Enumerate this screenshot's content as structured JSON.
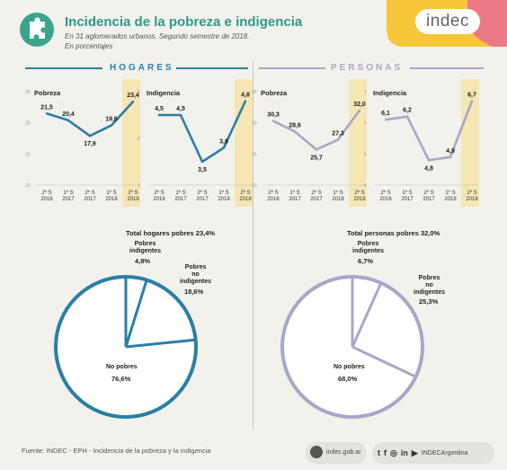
{
  "header": {
    "title": "Incidencia de la pobreza e indigencia",
    "subtitle_line1": "En 31 aglomerados urbanos. Segundo semestre de 2018.",
    "subtitle_line2": "En porcentajes",
    "brand": "indec",
    "colors": {
      "title": "#2d9a86",
      "brand_yellow": "#f6c73b",
      "brand_pink": "#ec7a86"
    }
  },
  "sections": {
    "hogares": {
      "title": "HOGARES",
      "color": "#2a7fa6"
    },
    "personas": {
      "title": "PERSONAS",
      "color": "#a9a7c8"
    }
  },
  "chart_data": [
    {
      "id": "hog_pob",
      "type": "line",
      "label": "Pobreza",
      "color": "#2a7fa6",
      "categories": [
        "2º S 2016",
        "1º S 2017",
        "2º S 2017",
        "1º S 2018",
        "2º S 2018"
      ],
      "values": [
        21.5,
        20.4,
        17.9,
        19.6,
        23.4
      ],
      "value_labels": [
        "21,5",
        "20,4",
        "17,9",
        "19,6",
        "23,4"
      ],
      "ylim": [
        10,
        25
      ],
      "yticks": [
        10,
        15,
        20,
        25
      ],
      "highlight_last": true
    },
    {
      "id": "hog_ind",
      "type": "line",
      "label": "Indigencia",
      "color": "#2a7fa6",
      "categories": [
        "2º S 2016",
        "1º S 2017",
        "2º S 2017",
        "1º S 2018",
        "2º S 2018"
      ],
      "values": [
        4.5,
        4.5,
        3.5,
        3.8,
        4.8
      ],
      "value_labels": [
        "4,5",
        "4,5",
        "3,5",
        "3,8",
        "4,8"
      ],
      "ylim": [
        3,
        5
      ],
      "yticks": [
        3,
        4,
        5
      ],
      "highlight_last": true
    },
    {
      "id": "per_pob",
      "type": "line",
      "label": "Pobreza",
      "color": "#a9a7c8",
      "categories": [
        "2º S 2016",
        "1º S 2017",
        "2º S 2017",
        "1º S 2018",
        "2º S 2018"
      ],
      "values": [
        30.3,
        28.6,
        25.7,
        27.3,
        32.0
      ],
      "value_labels": [
        "30,3",
        "28,6",
        "25,7",
        "27,3",
        "32,0"
      ],
      "ylim": [
        20,
        35
      ],
      "yticks": [
        20,
        25,
        30,
        35
      ],
      "highlight_last": true
    },
    {
      "id": "per_ind",
      "type": "line",
      "label": "Indigencia",
      "color": "#a9a7c8",
      "categories": [
        "2º S 2016",
        "1º S 2017",
        "2º S 2017",
        "1º S 2018",
        "2º S 2018"
      ],
      "values": [
        6.1,
        6.2,
        4.8,
        4.9,
        6.7
      ],
      "value_labels": [
        "6,1",
        "6,2",
        "4,8",
        "4,9",
        "6,7"
      ],
      "ylim": [
        4,
        7
      ],
      "yticks": [
        4,
        5,
        6,
        7
      ],
      "highlight_last": true
    },
    {
      "id": "hog_pie",
      "type": "pie",
      "title": "Total hogares pobres 23,4%",
      "color": "#2a7fa6",
      "slices": [
        {
          "label": "Pobres indigentes",
          "value": 4.8,
          "value_label": "4,8%"
        },
        {
          "label": "Pobres no indigentes",
          "value": 18.6,
          "value_label": "18,6%"
        },
        {
          "label": "No pobres",
          "value": 76.6,
          "value_label": "76,6%"
        }
      ]
    },
    {
      "id": "per_pie",
      "type": "pie",
      "title": "Total personas pobres 32,0%",
      "color": "#a9a7c8",
      "slices": [
        {
          "label": "Pobres indigentes",
          "value": 6.7,
          "value_label": "6,7%"
        },
        {
          "label": "Pobres no indigentes",
          "value": 25.3,
          "value_label": "25,3%"
        },
        {
          "label": "No pobres",
          "value": 68.0,
          "value_label": "68,0%"
        }
      ]
    }
  ],
  "pie_labels": {
    "hog": {
      "ind1": "Pobres",
      "ind2": "indigentes",
      "no1": "Pobres",
      "no2": "no",
      "no3": "indigentes",
      "np": "No pobres"
    },
    "per": {
      "ind1": "Pobres",
      "ind2": "indigentes",
      "no1": "Pobres",
      "no2": "no",
      "no3": "indigentes",
      "np": "No pobres"
    }
  },
  "footer": {
    "source": "Fuente: INDEC - EPH - Incidencia de la pobreza y la indigencia",
    "website": "indec.gob.ar",
    "social_handle": "INDECArgentina",
    "social_icons": [
      "twitter-icon",
      "facebook-icon",
      "instagram-icon",
      "linkedin-icon",
      "youtube-icon"
    ]
  }
}
